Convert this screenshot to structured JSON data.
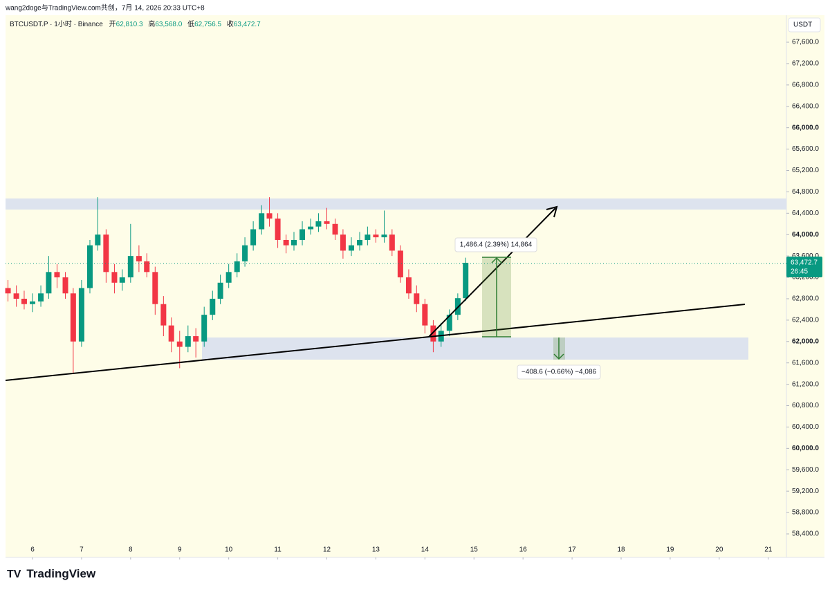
{
  "header": {
    "credit": "wang2doge与TradingView.com共创，7月 14, 2026 20:33 UTC+8",
    "symbol": "BTCUSDT.P · 1小时 · Binance",
    "o_label": "开",
    "o": "62,810.3",
    "h_label": "高",
    "h": "63,568.0",
    "l_label": "低",
    "l": "62,756.5",
    "c_label": "收",
    "c": "63,472.7"
  },
  "currency": "USDT",
  "price_tag": "63,472.7",
  "countdown": "26:45",
  "measure_up": "1,486.4 (2.39%) 14,864",
  "measure_down": "−408.6 (−0.66%) −4,086",
  "brand": "TradingView",
  "chart_data": {
    "type": "candlestick",
    "up_color": "#089981",
    "down_color": "#f23645",
    "x": [
      5.5,
      5.67,
      5.83,
      6.0,
      6.17,
      6.33,
      6.5,
      6.67,
      6.83,
      7.0,
      7.17,
      7.33,
      7.5,
      7.67,
      7.83,
      8.0,
      8.17,
      8.33,
      8.5,
      8.67,
      8.83,
      9.0,
      9.17,
      9.33,
      9.5,
      9.67,
      9.83,
      10.0,
      10.17,
      10.33,
      10.5,
      10.67,
      10.83,
      11.0,
      11.17,
      11.33,
      11.5,
      11.67,
      11.83,
      12.0,
      12.17,
      12.33,
      12.5,
      12.67,
      12.83,
      13.0,
      13.17,
      13.33,
      13.5,
      13.67,
      13.83,
      14.0,
      14.17,
      14.33,
      14.5,
      14.67,
      14.83
    ],
    "ohlc": [
      [
        63000,
        63150,
        62750,
        62900
      ],
      [
        62900,
        63050,
        62650,
        62800
      ],
      [
        62800,
        62950,
        62600,
        62700
      ],
      [
        62700,
        62900,
        62550,
        62750
      ],
      [
        62750,
        63050,
        62650,
        62900
      ],
      [
        62900,
        63600,
        62800,
        63300
      ],
      [
        63300,
        63450,
        63000,
        63200
      ],
      [
        63200,
        63300,
        62800,
        62900
      ],
      [
        62900,
        63000,
        61400,
        62000
      ],
      [
        62000,
        63150,
        61900,
        63000
      ],
      [
        63000,
        63900,
        62900,
        63800
      ],
      [
        63800,
        64700,
        63700,
        64000
      ],
      [
        64000,
        64100,
        63100,
        63300
      ],
      [
        63300,
        63450,
        62900,
        63100
      ],
      [
        63100,
        63350,
        62950,
        63200
      ],
      [
        63200,
        64200,
        63100,
        63600
      ],
      [
        63600,
        63800,
        63300,
        63500
      ],
      [
        63500,
        63650,
        63200,
        63300
      ],
      [
        63300,
        63400,
        62500,
        62700
      ],
      [
        62700,
        62850,
        62100,
        62300
      ],
      [
        62300,
        62450,
        61800,
        62000
      ],
      [
        62000,
        62200,
        61500,
        61900
      ],
      [
        61900,
        62300,
        61800,
        62100
      ],
      [
        62100,
        62250,
        61700,
        62000
      ],
      [
        62000,
        62650,
        61900,
        62500
      ],
      [
        62500,
        62950,
        62400,
        62800
      ],
      [
        62800,
        63250,
        62700,
        63100
      ],
      [
        63100,
        63450,
        63000,
        63300
      ],
      [
        63300,
        63650,
        63200,
        63500
      ],
      [
        63500,
        63950,
        63400,
        63800
      ],
      [
        63800,
        64250,
        63700,
        64100
      ],
      [
        64100,
        64550,
        64000,
        64400
      ],
      [
        64400,
        64700,
        64150,
        64300
      ],
      [
        64300,
        64400,
        63750,
        63900
      ],
      [
        63900,
        64000,
        63650,
        63800
      ],
      [
        63800,
        64050,
        63700,
        63900
      ],
      [
        63900,
        64250,
        63800,
        64100
      ],
      [
        64100,
        64300,
        64000,
        64150
      ],
      [
        64150,
        64400,
        64050,
        64250
      ],
      [
        64250,
        64500,
        64100,
        64200
      ],
      [
        64200,
        64300,
        63900,
        64000
      ],
      [
        64000,
        64100,
        63550,
        63700
      ],
      [
        63700,
        63950,
        63600,
        63800
      ],
      [
        63800,
        64050,
        63700,
        63900
      ],
      [
        63900,
        64150,
        63800,
        64000
      ],
      [
        64000,
        64100,
        63850,
        63950
      ],
      [
        63950,
        64450,
        63850,
        64000
      ],
      [
        64000,
        64100,
        63600,
        63700
      ],
      [
        63700,
        63800,
        63100,
        63200
      ],
      [
        63200,
        63350,
        62800,
        62900
      ],
      [
        62900,
        63050,
        62550,
        62700
      ],
      [
        62700,
        62800,
        62150,
        62300
      ],
      [
        62300,
        62400,
        61800,
        62000
      ],
      [
        62000,
        62350,
        61900,
        62200
      ],
      [
        62200,
        62600,
        62100,
        62500
      ],
      [
        62500,
        62900,
        62400,
        62810.3
      ],
      [
        62810.3,
        63568,
        62756.5,
        63472.7
      ]
    ],
    "xlim": [
      5.45,
      21.37
    ],
    "xticks": [
      6,
      7,
      8,
      9,
      10,
      11,
      12,
      13,
      14,
      15,
      16,
      17,
      18,
      19,
      20,
      21
    ],
    "ylim": [
      57960,
      68105
    ],
    "yticks": [
      {
        "value": 67600,
        "label": "67,600.0"
      },
      {
        "value": 67200,
        "label": "67,200.0"
      },
      {
        "value": 66800,
        "label": "66,800.0"
      },
      {
        "value": 66400,
        "label": "66,400.0"
      },
      {
        "value": 66000,
        "label": "66,000.0"
      },
      {
        "value": 65600,
        "label": "65,600.0"
      },
      {
        "value": 65200,
        "label": "65,200.0"
      },
      {
        "value": 64800,
        "label": "64,800.0"
      },
      {
        "value": 64400,
        "label": "64,400.0"
      },
      {
        "value": 64000,
        "label": "64,000.0"
      },
      {
        "value": 63600,
        "label": "63,600.0"
      },
      {
        "value": 63200,
        "label": "63,200.0"
      },
      {
        "value": 62800,
        "label": "62,800.0"
      },
      {
        "value": 62400,
        "label": "62,400.0"
      },
      {
        "value": 62000,
        "label": "62,000.0"
      },
      {
        "value": 61600,
        "label": "61,600.0"
      },
      {
        "value": 61200,
        "label": "61,200.0"
      },
      {
        "value": 60800,
        "label": "60,800.0"
      },
      {
        "value": 60400,
        "label": "60,400.0"
      },
      {
        "value": 60000,
        "label": "60,000.0"
      },
      {
        "value": 59600,
        "label": "59,600.0"
      },
      {
        "value": 59200,
        "label": "59,200.0"
      },
      {
        "value": 58800,
        "label": "58,800.0"
      },
      {
        "value": 58400,
        "label": "58,400.0"
      }
    ]
  }
}
